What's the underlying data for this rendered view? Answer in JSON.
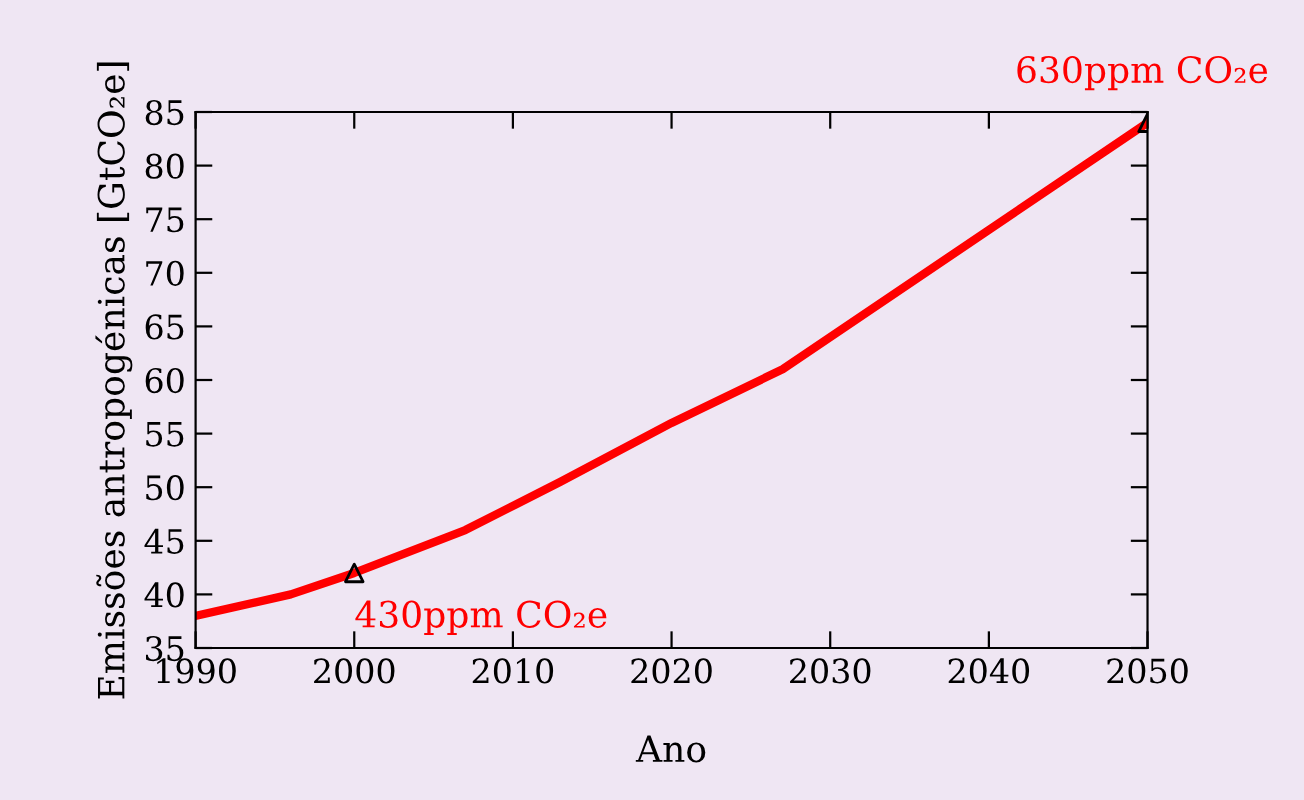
{
  "chart_data": {
    "type": "line",
    "xlabel": "Ano",
    "ylabel": "Emissões antropogénicas [GtCO₂e]",
    "xlim": [
      1990,
      2050
    ],
    "xticks": [
      1990,
      2000,
      2010,
      2020,
      2030,
      2040,
      2050
    ],
    "ylim": [
      35,
      85
    ],
    "yticks": [
      35,
      40,
      45,
      50,
      55,
      60,
      65,
      70,
      75,
      80,
      85
    ],
    "grid": false,
    "legend": false,
    "series": [
      {
        "color": "#ff0000",
        "x": [
          1990,
          1996,
          2000,
          2007,
          2013,
          2020,
          2027,
          2050
        ],
        "values": [
          38,
          40,
          42,
          46,
          50.5,
          56,
          61,
          84
        ]
      },
      {
        "type": "scatter",
        "marker": "triangle",
        "color": "#000000",
        "x": [
          2000,
          2050
        ],
        "values": [
          42,
          84
        ]
      }
    ],
    "annotations": [
      {
        "text": "430ppm CO₂e",
        "x": 2000,
        "y": 42
      },
      {
        "text": "630ppm CO₂e",
        "x": 2050,
        "y": 84
      }
    ]
  }
}
